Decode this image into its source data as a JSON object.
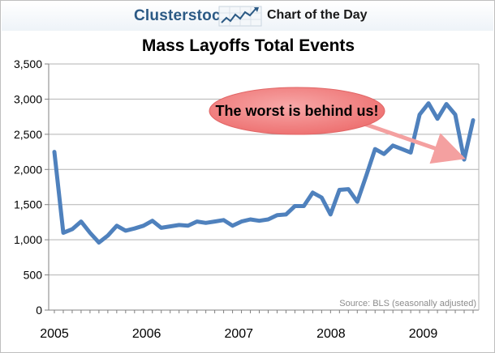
{
  "header": {
    "brand": "Clusterstock",
    "tagline": "Chart of the Day",
    "logo_icon": "rising-chart-logo-icon"
  },
  "chart_data": {
    "type": "line",
    "title": "Mass Layoffs Total Events",
    "xlabel": "",
    "ylabel": "",
    "ylim": [
      0,
      3500
    ],
    "yticks": [
      0,
      500,
      1000,
      1500,
      2000,
      2500,
      3000,
      3500
    ],
    "ytick_labels": [
      "0",
      "500",
      "1,000",
      "1,500",
      "2,000",
      "2,500",
      "3,000",
      "3,500"
    ],
    "xticks": [
      "2005",
      "2006",
      "2007",
      "2008",
      "2009"
    ],
    "grid": true,
    "line_color": "#4f81bd",
    "series": [
      {
        "values": [
          2250,
          1100,
          1150,
          1260,
          1100,
          960,
          1060,
          1200,
          1130,
          1160,
          1200,
          1270,
          1170,
          1190,
          1210,
          1200,
          1260,
          1240,
          1260,
          1280,
          1200,
          1260,
          1290,
          1270,
          1290,
          1350,
          1360,
          1480,
          1480,
          1670,
          1600,
          1360,
          1710,
          1720,
          1540,
          1910,
          2290,
          2220,
          2340,
          2290,
          2240,
          2780,
          2940,
          2720,
          2930,
          2780,
          2140,
          2700
        ]
      }
    ],
    "annotation": {
      "text": "The worst is behind us!",
      "bubble_color": "#f08080",
      "arrow_color": "#f4a0a0"
    },
    "source": "Source: BLS (seasonally adjusted)"
  }
}
